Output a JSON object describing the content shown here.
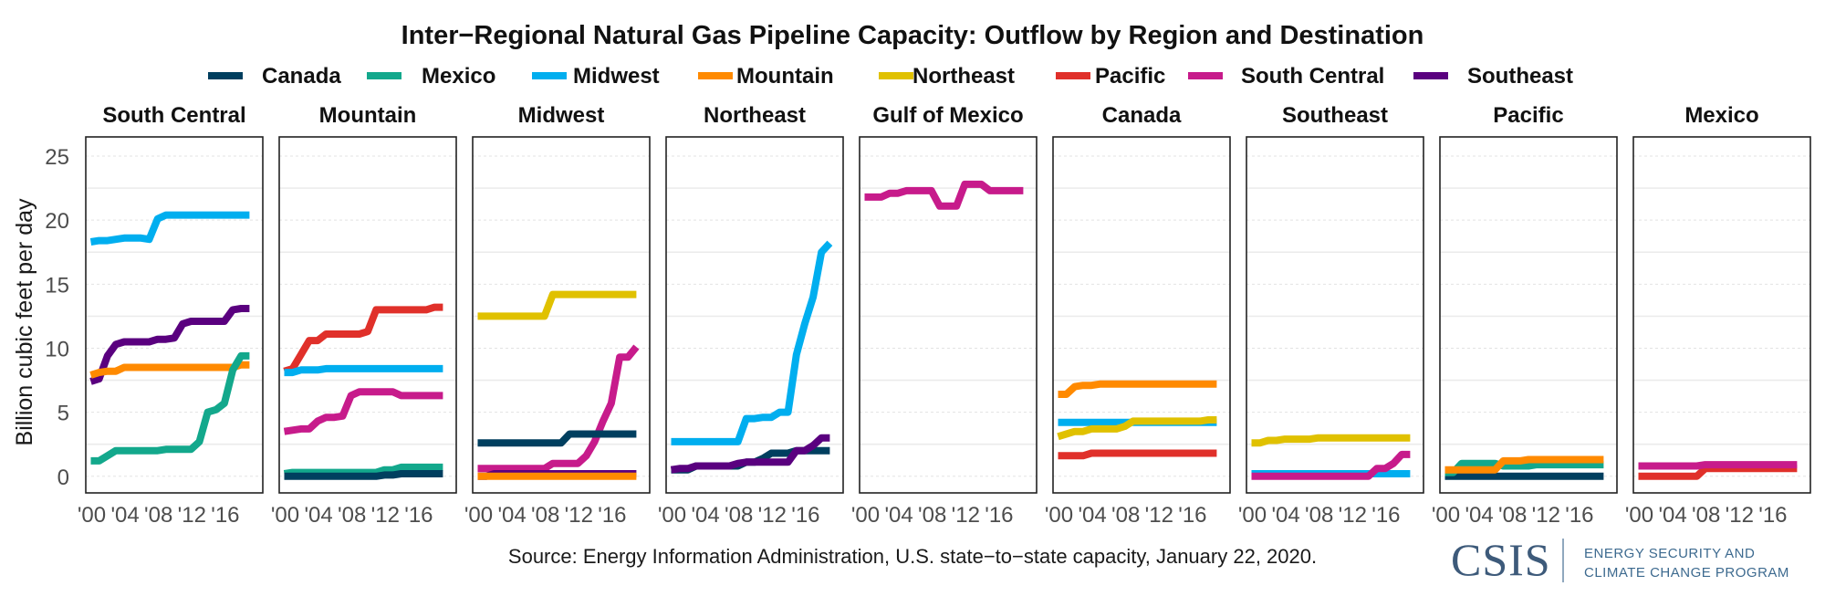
{
  "chart_data": {
    "type": "line",
    "title": "Inter−Regional Natural Gas Pipeline Capacity: Outflow by Region and Destination",
    "ylabel": "Billion cubic feet per day",
    "xlabel": "",
    "ylim": [
      -1.3,
      26.5
    ],
    "xlim": [
      1999.4,
      2020.6
    ],
    "yticks": [
      0,
      5,
      10,
      15,
      20,
      25
    ],
    "ytick_labels": [
      "0",
      "5",
      "10",
      "15",
      "20",
      "25"
    ],
    "xticks": [
      2000,
      2004,
      2008,
      2012,
      2016
    ],
    "xtick_labels": [
      "'00",
      "'04",
      "'08",
      "'12",
      "'16"
    ],
    "grid": true,
    "legend_position": "top",
    "caption": "Source: Energy Information Administration, U.S. state−to−state capacity, January 22, 2020.",
    "legend": [
      {
        "name": "Canada",
        "color": "#003f5f"
      },
      {
        "name": "Mexico",
        "color": "#13a88c"
      },
      {
        "name": "Midwest",
        "color": "#00aeef"
      },
      {
        "name": "Mountain",
        "color": "#ff8a00"
      },
      {
        "name": "Northeast",
        "color": "#e0c100"
      },
      {
        "name": "Pacific",
        "color": "#e0302a"
      },
      {
        "name": "South Central",
        "color": "#c71b8b"
      },
      {
        "name": "Southeast",
        "color": "#5a007f"
      }
    ],
    "x": [
      2000,
      2001,
      2002,
      2003,
      2004,
      2005,
      2006,
      2007,
      2008,
      2009,
      2010,
      2011,
      2012,
      2013,
      2014,
      2015,
      2016,
      2017,
      2018,
      2019
    ],
    "panels": [
      {
        "region": "South Central",
        "series": [
          {
            "name": "Midwest",
            "values": [
              18.3,
              18.4,
              18.4,
              18.5,
              18.6,
              18.6,
              18.6,
              18.5,
              20.1,
              20.4,
              20.4,
              20.4,
              20.4,
              20.4,
              20.4,
              20.4,
              20.4,
              20.4,
              20.4,
              20.4
            ]
          },
          {
            "name": "Southeast",
            "values": [
              7.4,
              7.6,
              9.4,
              10.3,
              10.5,
              10.5,
              10.5,
              10.5,
              10.7,
              10.7,
              10.8,
              11.9,
              12.1,
              12.1,
              12.1,
              12.1,
              12.1,
              13.0,
              13.1,
              13.1
            ]
          },
          {
            "name": "Mountain",
            "values": [
              7.9,
              8.1,
              8.2,
              8.2,
              8.5,
              8.5,
              8.5,
              8.5,
              8.5,
              8.5,
              8.5,
              8.5,
              8.5,
              8.5,
              8.5,
              8.5,
              8.5,
              8.5,
              8.7,
              8.7
            ]
          },
          {
            "name": "Mexico",
            "values": [
              1.2,
              1.2,
              1.6,
              2.0,
              2.0,
              2.0,
              2.0,
              2.0,
              2.0,
              2.1,
              2.1,
              2.1,
              2.1,
              2.7,
              5.0,
              5.2,
              5.7,
              8.3,
              9.4,
              9.4
            ]
          }
        ]
      },
      {
        "region": "Mountain",
        "series": [
          {
            "name": "Pacific",
            "values": [
              8.2,
              8.4,
              9.5,
              10.6,
              10.6,
              11.1,
              11.1,
              11.1,
              11.1,
              11.1,
              11.3,
              13.0,
              13.0,
              13.0,
              13.0,
              13.0,
              13.0,
              13.0,
              13.2,
              13.2
            ]
          },
          {
            "name": "Midwest",
            "values": [
              8.1,
              8.1,
              8.3,
              8.3,
              8.3,
              8.4,
              8.4,
              8.4,
              8.4,
              8.4,
              8.4,
              8.4,
              8.4,
              8.4,
              8.4,
              8.4,
              8.4,
              8.4,
              8.4,
              8.4
            ]
          },
          {
            "name": "South Central",
            "values": [
              3.5,
              3.6,
              3.7,
              3.7,
              4.3,
              4.6,
              4.6,
              4.7,
              6.3,
              6.6,
              6.6,
              6.6,
              6.6,
              6.6,
              6.3,
              6.3,
              6.3,
              6.3,
              6.3,
              6.3
            ]
          },
          {
            "name": "Mexico",
            "values": [
              0.2,
              0.3,
              0.3,
              0.3,
              0.3,
              0.3,
              0.3,
              0.3,
              0.3,
              0.3,
              0.3,
              0.3,
              0.5,
              0.5,
              0.7,
              0.7,
              0.7,
              0.7,
              0.7,
              0.7
            ]
          },
          {
            "name": "Canada",
            "values": [
              0.0,
              0.0,
              0.0,
              0.0,
              0.0,
              0.0,
              0.0,
              0.0,
              0.0,
              0.0,
              0.0,
              0.0,
              0.1,
              0.1,
              0.2,
              0.2,
              0.2,
              0.2,
              0.2,
              0.2
            ]
          }
        ]
      },
      {
        "region": "Midwest",
        "series": [
          {
            "name": "Northeast",
            "values": [
              12.5,
              12.5,
              12.5,
              12.5,
              12.5,
              12.5,
              12.5,
              12.5,
              12.5,
              14.2,
              14.2,
              14.2,
              14.2,
              14.2,
              14.2,
              14.2,
              14.2,
              14.2,
              14.2,
              14.2
            ]
          },
          {
            "name": "South Central",
            "values": [
              0.6,
              0.6,
              0.6,
              0.6,
              0.6,
              0.6,
              0.6,
              0.6,
              0.6,
              1.0,
              1.0,
              1.0,
              1.0,
              1.6,
              2.7,
              4.3,
              5.7,
              9.3,
              9.3,
              10.1
            ]
          },
          {
            "name": "Canada",
            "values": [
              2.6,
              2.6,
              2.6,
              2.6,
              2.6,
              2.6,
              2.6,
              2.6,
              2.6,
              2.6,
              2.6,
              3.3,
              3.3,
              3.3,
              3.3,
              3.3,
              3.3,
              3.3,
              3.3,
              3.3
            ]
          },
          {
            "name": "Southeast",
            "values": [
              0.0,
              0.0,
              0.2,
              0.2,
              0.2,
              0.2,
              0.2,
              0.2,
              0.2,
              0.2,
              0.2,
              0.2,
              0.2,
              0.2,
              0.2,
              0.2,
              0.2,
              0.2,
              0.2,
              0.2
            ]
          },
          {
            "name": "Mountain",
            "values": [
              0.0,
              0.0,
              0.0,
              0.0,
              0.0,
              0.0,
              0.0,
              0.0,
              0.0,
              0.0,
              0.0,
              0.0,
              0.0,
              0.0,
              0.0,
              0.0,
              0.0,
              0.0,
              0.0,
              0.0
            ]
          }
        ]
      },
      {
        "region": "Northeast",
        "series": [
          {
            "name": "Midwest",
            "values": [
              2.7,
              2.7,
              2.7,
              2.7,
              2.7,
              2.7,
              2.7,
              2.7,
              2.7,
              4.5,
              4.5,
              4.6,
              4.6,
              5.0,
              5.0,
              9.5,
              11.9,
              14.0,
              17.5,
              18.2
            ]
          },
          {
            "name": "Canada",
            "values": [
              0.5,
              0.5,
              0.5,
              0.8,
              0.8,
              0.8,
              0.8,
              0.8,
              0.8,
              1.1,
              1.1,
              1.4,
              1.8,
              1.8,
              1.8,
              2.0,
              2.0,
              2.0,
              2.0,
              2.0
            ]
          },
          {
            "name": "Southeast",
            "values": [
              0.5,
              0.6,
              0.6,
              0.8,
              0.8,
              0.8,
              0.8,
              0.8,
              1.0,
              1.1,
              1.1,
              1.1,
              1.1,
              1.1,
              1.1,
              2.0,
              2.0,
              2.4,
              3.0,
              3.0
            ]
          }
        ]
      },
      {
        "region": "Gulf of Mexico",
        "series": [
          {
            "name": "South Central",
            "values": [
              21.8,
              21.8,
              21.8,
              22.1,
              22.1,
              22.3,
              22.3,
              22.3,
              22.3,
              21.1,
              21.1,
              21.1,
              22.8,
              22.8,
              22.8,
              22.3,
              22.3,
              22.3,
              22.3,
              22.3
            ]
          }
        ]
      },
      {
        "region": "Canada",
        "series": [
          {
            "name": "Mountain",
            "values": [
              6.4,
              6.4,
              7.0,
              7.1,
              7.1,
              7.2,
              7.2,
              7.2,
              7.2,
              7.2,
              7.2,
              7.2,
              7.2,
              7.2,
              7.2,
              7.2,
              7.2,
              7.2,
              7.2,
              7.2
            ]
          },
          {
            "name": "Midwest",
            "values": [
              4.2,
              4.2,
              4.2,
              4.2,
              4.2,
              4.2,
              4.2,
              4.2,
              4.2,
              4.2,
              4.2,
              4.2,
              4.2,
              4.2,
              4.2,
              4.2,
              4.2,
              4.2,
              4.2,
              4.2
            ]
          },
          {
            "name": "Northeast",
            "values": [
              3.1,
              3.3,
              3.5,
              3.5,
              3.7,
              3.7,
              3.7,
              3.7,
              3.9,
              4.3,
              4.3,
              4.3,
              4.3,
              4.3,
              4.3,
              4.3,
              4.3,
              4.3,
              4.4,
              4.4
            ]
          },
          {
            "name": "Pacific",
            "values": [
              1.6,
              1.6,
              1.6,
              1.6,
              1.8,
              1.8,
              1.8,
              1.8,
              1.8,
              1.8,
              1.8,
              1.8,
              1.8,
              1.8,
              1.8,
              1.8,
              1.8,
              1.8,
              1.8,
              1.8
            ]
          }
        ]
      },
      {
        "region": "Southeast",
        "series": [
          {
            "name": "Northeast",
            "values": [
              2.6,
              2.6,
              2.8,
              2.8,
              2.9,
              2.9,
              2.9,
              2.9,
              3.0,
              3.0,
              3.0,
              3.0,
              3.0,
              3.0,
              3.0,
              3.0,
              3.0,
              3.0,
              3.0,
              3.0
            ]
          },
          {
            "name": "Midwest",
            "values": [
              0.2,
              0.2,
              0.2,
              0.2,
              0.2,
              0.2,
              0.2,
              0.2,
              0.2,
              0.2,
              0.2,
              0.2,
              0.2,
              0.2,
              0.2,
              0.2,
              0.2,
              0.2,
              0.2,
              0.2
            ]
          },
          {
            "name": "South Central",
            "values": [
              0.0,
              0.0,
              0.0,
              0.0,
              0.0,
              0.0,
              0.0,
              0.0,
              0.0,
              0.0,
              0.0,
              0.0,
              0.0,
              0.0,
              0.0,
              0.6,
              0.6,
              1.0,
              1.7,
              1.7
            ]
          }
        ]
      },
      {
        "region": "Pacific",
        "series": [
          {
            "name": "Canada",
            "values": [
              0.0,
              0.0,
              0.0,
              0.0,
              0.0,
              0.0,
              0.0,
              0.0,
              0.0,
              0.0,
              0.0,
              0.0,
              0.0,
              0.0,
              0.0,
              0.0,
              0.0,
              0.0,
              0.0,
              0.0
            ]
          },
          {
            "name": "Mexico",
            "values": [
              0.3,
              0.3,
              1.0,
              1.0,
              1.0,
              1.0,
              1.0,
              0.8,
              0.8,
              0.8,
              0.8,
              0.9,
              0.9,
              0.9,
              0.9,
              0.9,
              0.9,
              0.9,
              0.9,
              0.9
            ]
          },
          {
            "name": "Mountain",
            "values": [
              0.5,
              0.5,
              0.5,
              0.5,
              0.5,
              0.5,
              0.5,
              1.2,
              1.2,
              1.2,
              1.3,
              1.3,
              1.3,
              1.3,
              1.3,
              1.3,
              1.3,
              1.3,
              1.3,
              1.3
            ]
          }
        ]
      },
      {
        "region": "Mexico",
        "series": [
          {
            "name": "Pacific",
            "values": [
              0.0,
              0.0,
              0.0,
              0.0,
              0.0,
              0.0,
              0.0,
              0.0,
              0.6,
              0.6,
              0.6,
              0.6,
              0.6,
              0.6,
              0.6,
              0.6,
              0.6,
              0.6,
              0.6,
              0.6
            ]
          },
          {
            "name": "South Central",
            "values": [
              0.8,
              0.8,
              0.8,
              0.8,
              0.8,
              0.8,
              0.8,
              0.8,
              0.9,
              0.9,
              0.9,
              0.9,
              0.9,
              0.9,
              0.9,
              0.9,
              0.9,
              0.9,
              0.9,
              0.9
            ]
          }
        ]
      }
    ]
  },
  "logo": {
    "main": "CSIS",
    "line1": "ENERGY SECURITY AND",
    "line2": "CLIMATE CHANGE PROGRAM"
  }
}
